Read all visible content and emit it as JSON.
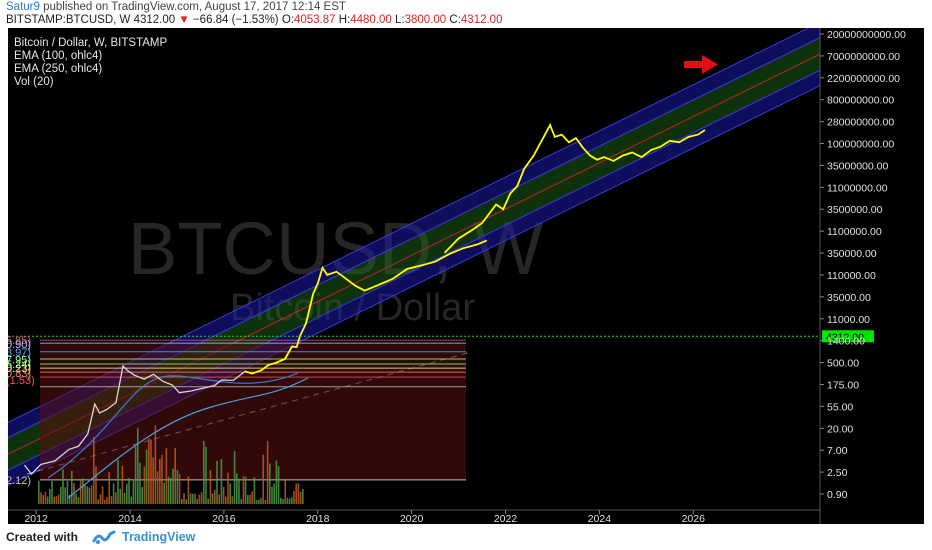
{
  "header": {
    "author": "Satur9",
    "published": "published on TradingView.com, August 17, 2017 12:14 EST",
    "symbol": "BITSTAMP:BTCUSD, W",
    "price": "4312.00",
    "change": "−66.84 (−1.53%)",
    "o_label": "O:",
    "o_value": "4053.87",
    "h_label": "H:",
    "h_value": "4480.00",
    "l_label": "L:",
    "l_value": "3800.00",
    "c_label": "C:",
    "c_value": "4312.00"
  },
  "legend": {
    "title": "Bitcoin / Dollar, W, BITSTAMP",
    "ema100": "EMA (100, ohlc4)",
    "ema250": "EMA (250, ohlc4)",
    "vol": "Vol (20)"
  },
  "watermark": {
    "big": "BTCUSD, W",
    "sub": "Bitcoin / Dollar"
  },
  "footer": {
    "created": "Created with",
    "brand": "TradingView"
  },
  "colors": {
    "background": "#000000",
    "price_line": "#ffff00",
    "band_outer": "#1a1aa8",
    "band_inner": "#1e6e1e",
    "center_line": "#c81e1e",
    "current_price": "#00e600",
    "arrow": "#dd1111"
  },
  "fib_labels": [
    "5.85)",
    "0.90)",
    "3.97)",
    "7.95)",
    "5.24)",
    "0.23)",
    "0.83)",
    "(1.53)",
    "2.12)"
  ],
  "chart_data": {
    "type": "line",
    "title": "Bitcoin / Dollar, W, BITSTAMP",
    "scale": "log",
    "x_ticks": [
      "2012",
      "2014",
      "2016",
      "2018",
      "2020",
      "2022",
      "2024",
      "2026"
    ],
    "y_ticks": [
      "20000000000.00",
      "7000000000.00",
      "2200000000.00",
      "800000000.00",
      "280000000.00",
      "100000000.00",
      "35000000.00",
      "11000000.00",
      "3500000.00",
      "1100000.00",
      "350000.00",
      "110000.00",
      "35000.00",
      "11000.00",
      "1400.00",
      "500.00",
      "175.00",
      "55.00",
      "20.00",
      "7.00",
      "2.50",
      "0.90"
    ],
    "current_price": "4312.00",
    "ylim": [
      0.45,
      50000000000
    ],
    "xlim": [
      2011.4,
      2028.7
    ],
    "series": [
      {
        "values": [
          [
            2011.75,
            4.8
          ],
          [
            2011.9,
            3
          ],
          [
            2012.1,
            5
          ],
          [
            2012.4,
            6
          ],
          [
            2012.7,
            11
          ],
          [
            2012.9,
            13
          ],
          [
            2013.1,
            25
          ],
          [
            2013.25,
            120
          ],
          [
            2013.35,
            75
          ],
          [
            2013.5,
            90
          ],
          [
            2013.7,
            130
          ],
          [
            2013.85,
            900
          ],
          [
            2013.95,
            700
          ],
          [
            2014.1,
            550
          ],
          [
            2014.3,
            450
          ],
          [
            2014.5,
            580
          ],
          [
            2014.7,
            400
          ],
          [
            2014.9,
            330
          ],
          [
            2015.05,
            220
          ],
          [
            2015.3,
            240
          ],
          [
            2015.5,
            270
          ],
          [
            2015.8,
            320
          ],
          [
            2015.95,
            430
          ],
          [
            2016.2,
            420
          ],
          [
            2016.45,
            680
          ],
          [
            2016.6,
            600
          ],
          [
            2016.8,
            720
          ],
          [
            2016.95,
            950
          ],
          [
            2017.1,
            1050
          ],
          [
            2017.3,
            1300
          ],
          [
            2017.45,
            2500
          ],
          [
            2017.55,
            2450
          ],
          [
            2017.62,
            4312
          ]
        ]
      },
      {
        "values": [
          [
            2017.62,
            4312
          ],
          [
            2017.75,
            8500
          ],
          [
            2017.9,
            40000
          ],
          [
            2018.0,
            70000
          ],
          [
            2018.1,
            160000
          ],
          [
            2018.2,
            110000
          ],
          [
            2018.4,
            130000
          ],
          [
            2018.6,
            90000
          ],
          [
            2018.8,
            62000
          ],
          [
            2019.0,
            48000
          ],
          [
            2019.3,
            65000
          ],
          [
            2019.6,
            90000
          ],
          [
            2019.9,
            150000
          ],
          [
            2020.2,
            180000
          ],
          [
            2020.5,
            220000
          ],
          [
            2020.8,
            330000
          ],
          [
            2021.1,
            450000
          ],
          [
            2021.4,
            550000
          ],
          [
            2021.6,
            680000
          ]
        ]
      },
      {
        "values": [
          [
            2020.7,
            350000
          ],
          [
            2021.0,
            750000
          ],
          [
            2021.3,
            1200000
          ],
          [
            2021.5,
            1700000
          ],
          [
            2021.8,
            4500000
          ],
          [
            2021.95,
            3500000
          ],
          [
            2022.1,
            8000000
          ],
          [
            2022.25,
            12000000
          ],
          [
            2022.4,
            30000000
          ],
          [
            2022.6,
            60000000
          ],
          [
            2022.8,
            150000000
          ],
          [
            2022.95,
            300000000
          ],
          [
            2023.05,
            160000000
          ],
          [
            2023.2,
            180000000
          ],
          [
            2023.35,
            120000000
          ],
          [
            2023.5,
            150000000
          ],
          [
            2023.65,
            90000000
          ],
          [
            2023.8,
            60000000
          ],
          [
            2023.95,
            48000000
          ],
          [
            2024.1,
            55000000
          ],
          [
            2024.3,
            45000000
          ],
          [
            2024.5,
            60000000
          ],
          [
            2024.7,
            70000000
          ],
          [
            2024.9,
            55000000
          ],
          [
            2025.1,
            80000000
          ],
          [
            2025.3,
            95000000
          ],
          [
            2025.5,
            130000000
          ],
          [
            2025.7,
            120000000
          ],
          [
            2025.9,
            160000000
          ],
          [
            2026.1,
            180000000
          ],
          [
            2026.25,
            230000000
          ]
        ]
      }
    ]
  }
}
